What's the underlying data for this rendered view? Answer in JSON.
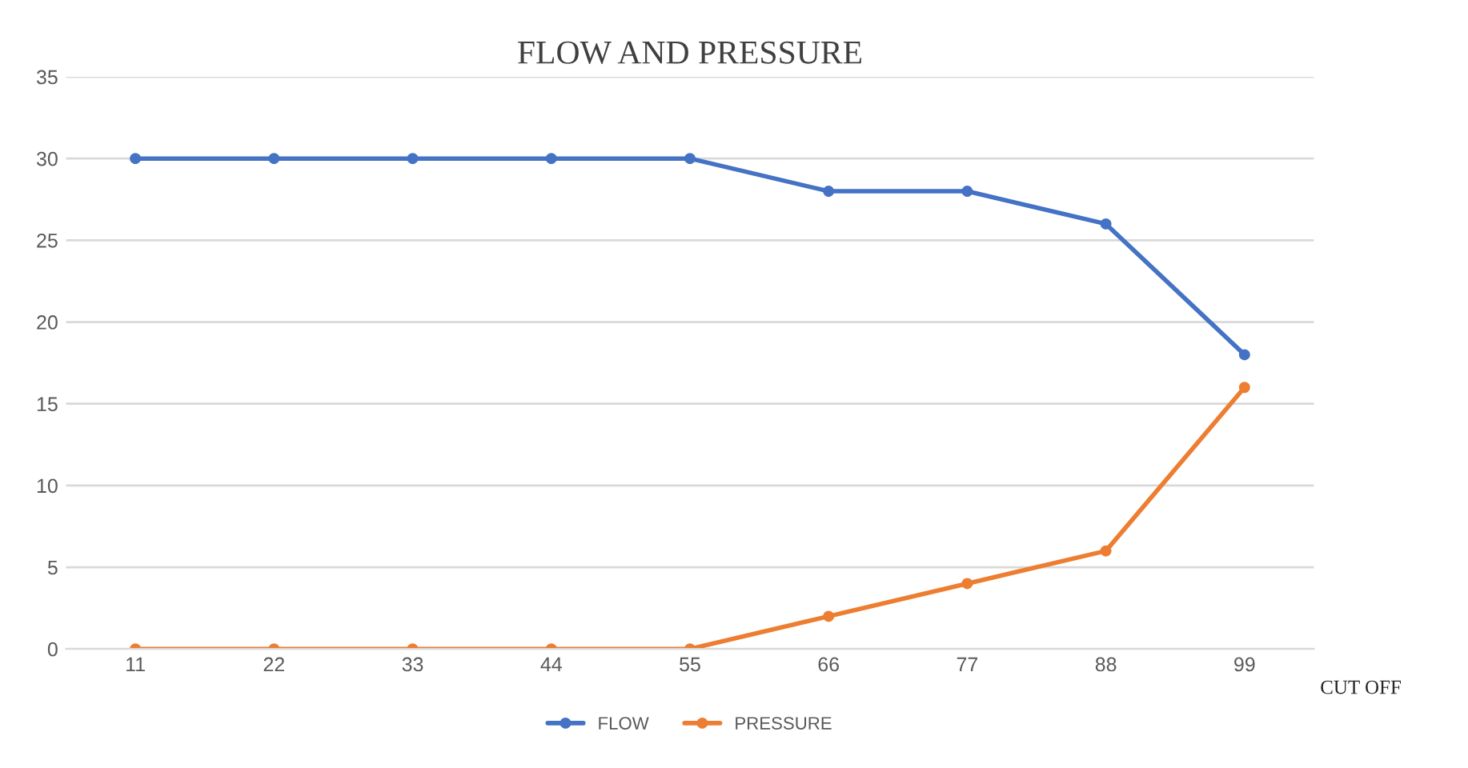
{
  "chart_data": {
    "type": "line",
    "title": "FLOW AND PRESSURE",
    "xlabel": "CUT OFF",
    "categories": [
      "11",
      "22",
      "33",
      "44",
      "55",
      "66",
      "77",
      "88",
      "99"
    ],
    "series": [
      {
        "name": "FLOW",
        "color": "#4472c4",
        "values": [
          30,
          30,
          30,
          30,
          30,
          28,
          28,
          26,
          18
        ]
      },
      {
        "name": "PRESSURE",
        "color": "#ed7d31",
        "values": [
          0,
          0,
          0,
          0,
          0,
          2,
          4,
          6,
          16
        ]
      }
    ],
    "ylim": [
      0,
      35
    ],
    "yticks": [
      0,
      5,
      10,
      15,
      20,
      25,
      30,
      35
    ],
    "grid": "y",
    "legend": "bottom",
    "marker": "circle",
    "line_style": "solid"
  }
}
